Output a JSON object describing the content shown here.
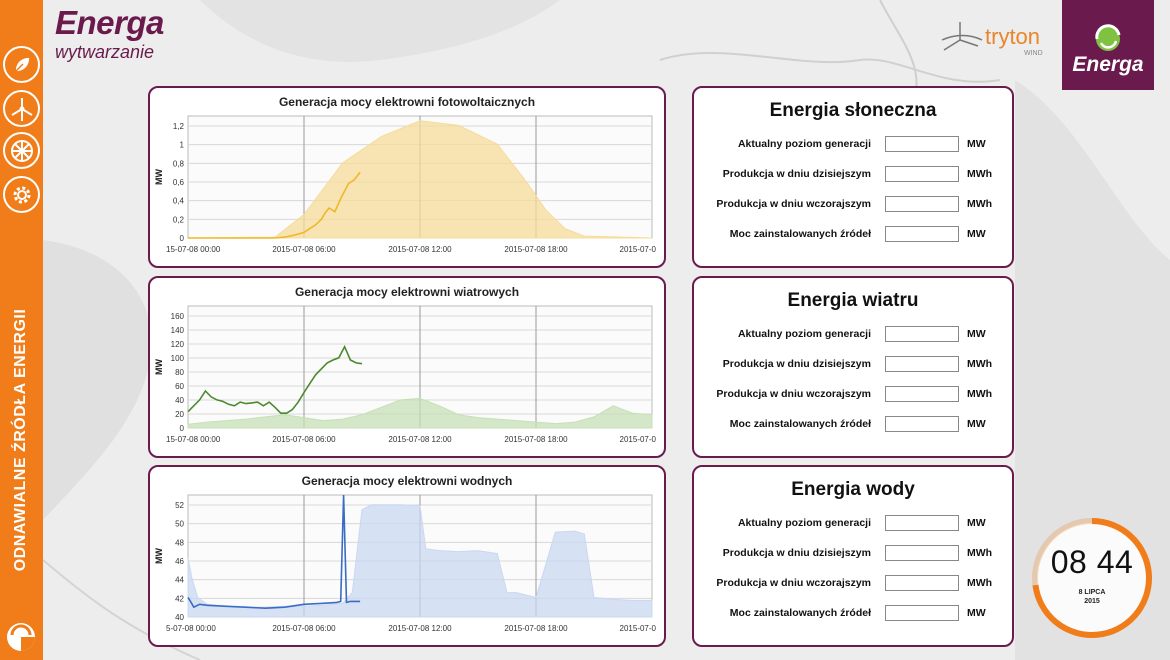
{
  "brand": {
    "title": "Energa",
    "subtitle": "wytwarzanie"
  },
  "partner": {
    "name": "tryton",
    "sub": "WIND"
  },
  "badge": {
    "name": "Energa"
  },
  "sidebar": {
    "vertical_text": "ODNAWIALNE ŹRÓDŁA ENERGII",
    "icons": [
      "leaf-icon",
      "wind-turbine-icon",
      "water-turbine-icon",
      "gear-icon"
    ],
    "accent": "#f07d1a"
  },
  "colors": {
    "brand": "#6a1a4c",
    "accent": "#f07d1a",
    "solar": "#f0b72a",
    "wind": "#4b8a2e",
    "water": "#3b6cc4"
  },
  "charts": [
    {
      "title": "Generacja mocy elektrowni fotowoltaicznych",
      "ylabel": "MW",
      "yticks": [
        "1,2",
        "1",
        "0,8",
        "0,6",
        "0,4",
        "0,2",
        "0"
      ],
      "xticks": [
        "15-07-08 00:00",
        "2015-07-08 06:00",
        "2015-07-08 12:00",
        "2015-07-08 18:00",
        "2015-07-0"
      ]
    },
    {
      "title": "Generacja mocy elektrowni wiatrowych",
      "ylabel": "MW",
      "yticks": [
        "160",
        "140",
        "120",
        "100",
        "80",
        "60",
        "40",
        "20",
        "0"
      ],
      "xticks": [
        "15-07-08 00:00",
        "2015-07-08 06:00",
        "2015-07-08 12:00",
        "2015-07-08 18:00",
        "2015-07-0"
      ]
    },
    {
      "title": "Generacja mocy elektrowni wodnych",
      "ylabel": "MW",
      "yticks": [
        "52",
        "50",
        "48",
        "46",
        "44",
        "42",
        "40"
      ],
      "xticks": [
        "5-07-08 00:00",
        "2015-07-08 06:00",
        "2015-07-08 12:00",
        "2015-07-08 18:00",
        "2015-07-0"
      ]
    }
  ],
  "chart_data": [
    {
      "type": "line",
      "title": "Generacja mocy elektrowni fotowoltaicznych",
      "ylabel": "MW",
      "ylim": [
        0,
        1.3
      ],
      "x_unit": "hours since 2015-07-08 00:00",
      "xlim": [
        0,
        24
      ],
      "series": [
        {
          "color": "#f0b72a",
          "x": [
            0,
            4.5,
            5,
            5.5,
            6,
            6.3,
            6.6,
            6.9,
            7.1,
            7.3,
            7.6,
            7.9,
            8.1,
            8.3,
            8.6,
            8.9
          ],
          "values": [
            0,
            0,
            0.01,
            0.03,
            0.06,
            0.1,
            0.14,
            0.2,
            0.27,
            0.32,
            0.28,
            0.42,
            0.5,
            0.58,
            0.62,
            0.7
          ]
        },
        {
          "color": "#f5dc9a",
          "fill": true,
          "x": [
            0,
            4.5,
            6,
            8,
            10,
            12,
            14,
            16,
            17.5,
            18.5,
            19.5,
            20.5,
            24
          ],
          "values": [
            0,
            0.01,
            0.25,
            0.8,
            1.08,
            1.25,
            1.2,
            1.0,
            0.6,
            0.3,
            0.1,
            0.02,
            0
          ]
        }
      ]
    },
    {
      "type": "line",
      "title": "Generacja mocy elektrowni wiatrowych",
      "ylabel": "MW",
      "ylim": [
        0,
        165
      ],
      "x_unit": "hours since 2015-07-08 00:00",
      "xlim": [
        0,
        24
      ],
      "series": [
        {
          "color": "#4b8a2e",
          "x": [
            0,
            0.3,
            0.6,
            0.9,
            1.2,
            1.5,
            1.8,
            2.1,
            2.4,
            2.7,
            3.0,
            3.3,
            3.6,
            3.9,
            4.2,
            4.5,
            4.8,
            5.1,
            5.4,
            5.7,
            6.0,
            6.3,
            6.6,
            6.9,
            7.2,
            7.5,
            7.8,
            8.1,
            8.4,
            8.7,
            9.0
          ],
          "values": [
            22,
            30,
            38,
            50,
            42,
            38,
            36,
            32,
            30,
            35,
            33,
            34,
            35,
            30,
            35,
            28,
            20,
            20,
            25,
            35,
            48,
            60,
            72,
            80,
            88,
            92,
            95,
            110,
            92,
            88,
            87
          ]
        },
        {
          "color": "#c7e0b7",
          "fill": true,
          "x": [
            0,
            1,
            2,
            3,
            4,
            5,
            6,
            7,
            8,
            9,
            10,
            11,
            12,
            13,
            14,
            15,
            16,
            17,
            18,
            19,
            20,
            21,
            22,
            23,
            24
          ],
          "values": [
            5,
            8,
            10,
            12,
            15,
            18,
            14,
            10,
            12,
            18,
            28,
            38,
            40,
            30,
            18,
            14,
            12,
            10,
            8,
            6,
            8,
            15,
            30,
            20,
            18
          ]
        }
      ]
    },
    {
      "type": "line",
      "title": "Generacja mocy elektrowni wodnych",
      "ylabel": "MW",
      "ylim": [
        39.5,
        52
      ],
      "x_unit": "hours since 2015-07-08 00:00",
      "xlim": [
        0,
        24
      ],
      "series": [
        {
          "color": "#3b6cc4",
          "x": [
            0,
            0.1,
            0.3,
            0.6,
            1.0,
            2.0,
            3.0,
            4.0,
            5.0,
            6.0,
            7.0,
            7.7,
            7.9,
            8.05,
            8.2,
            8.4,
            8.9
          ],
          "values": [
            41.5,
            41.2,
            40.5,
            40.8,
            40.7,
            40.6,
            40.5,
            40.4,
            40.5,
            40.8,
            40.9,
            41.0,
            41.1,
            52.0,
            41.0,
            41.1,
            41.1
          ]
        },
        {
          "color": "#c9d8f1",
          "fill": true,
          "x": [
            0,
            0.2,
            0.5,
            1,
            2,
            3,
            4,
            5,
            6,
            7,
            8,
            8.5,
            9,
            9.5,
            10,
            11,
            12,
            12.3,
            13,
            14,
            15,
            16,
            16.5,
            17,
            18,
            19,
            20,
            20.5,
            21,
            22,
            23,
            24
          ],
          "values": [
            45.5,
            43.5,
            41.5,
            40.8,
            40.6,
            40.5,
            40.5,
            40.6,
            40.6,
            40.7,
            40.9,
            42,
            50.5,
            51,
            51,
            51,
            50.9,
            46.5,
            46.3,
            46.2,
            46.3,
            46.0,
            42,
            42,
            41.5,
            48.2,
            48.3,
            48,
            41.5,
            41.3,
            41.2,
            41.2
          ]
        }
      ]
    }
  ],
  "panels": [
    {
      "title": "Energia słoneczna",
      "rows": [
        {
          "label": "Aktualny poziom generacji",
          "value": "",
          "unit": "MW"
        },
        {
          "label": "Produkcja w dniu dzisiejszym",
          "value": "",
          "unit": "MWh"
        },
        {
          "label": "Produkcja w dniu wczorajszym",
          "value": "",
          "unit": "MWh"
        },
        {
          "label": "Moc zainstalowanych źródeł",
          "value": "",
          "unit": "MW"
        }
      ]
    },
    {
      "title": "Energia wiatru",
      "rows": [
        {
          "label": "Aktualny poziom generacji",
          "value": "",
          "unit": "MW"
        },
        {
          "label": "Produkcja w dniu dzisiejszym",
          "value": "",
          "unit": "MWh"
        },
        {
          "label": "Produkcja w dniu wczorajszym",
          "value": "",
          "unit": "MWh"
        },
        {
          "label": "Moc zainstalowanych źródeł",
          "value": "",
          "unit": "MW"
        }
      ]
    },
    {
      "title": "Energia wody",
      "rows": [
        {
          "label": "Aktualny poziom generacji",
          "value": "",
          "unit": "MW"
        },
        {
          "label": "Produkcja w dniu dzisiejszym",
          "value": "",
          "unit": "MWh"
        },
        {
          "label": "Produkcja w dniu wczorajszym",
          "value": "",
          "unit": "MWh"
        },
        {
          "label": "Moc zainstalowanych źródeł",
          "value": "",
          "unit": "MW"
        }
      ]
    }
  ],
  "clock": {
    "time": "08 44",
    "date_day": "8 LIPCA",
    "date_year": "2015",
    "progress": 0.73
  }
}
